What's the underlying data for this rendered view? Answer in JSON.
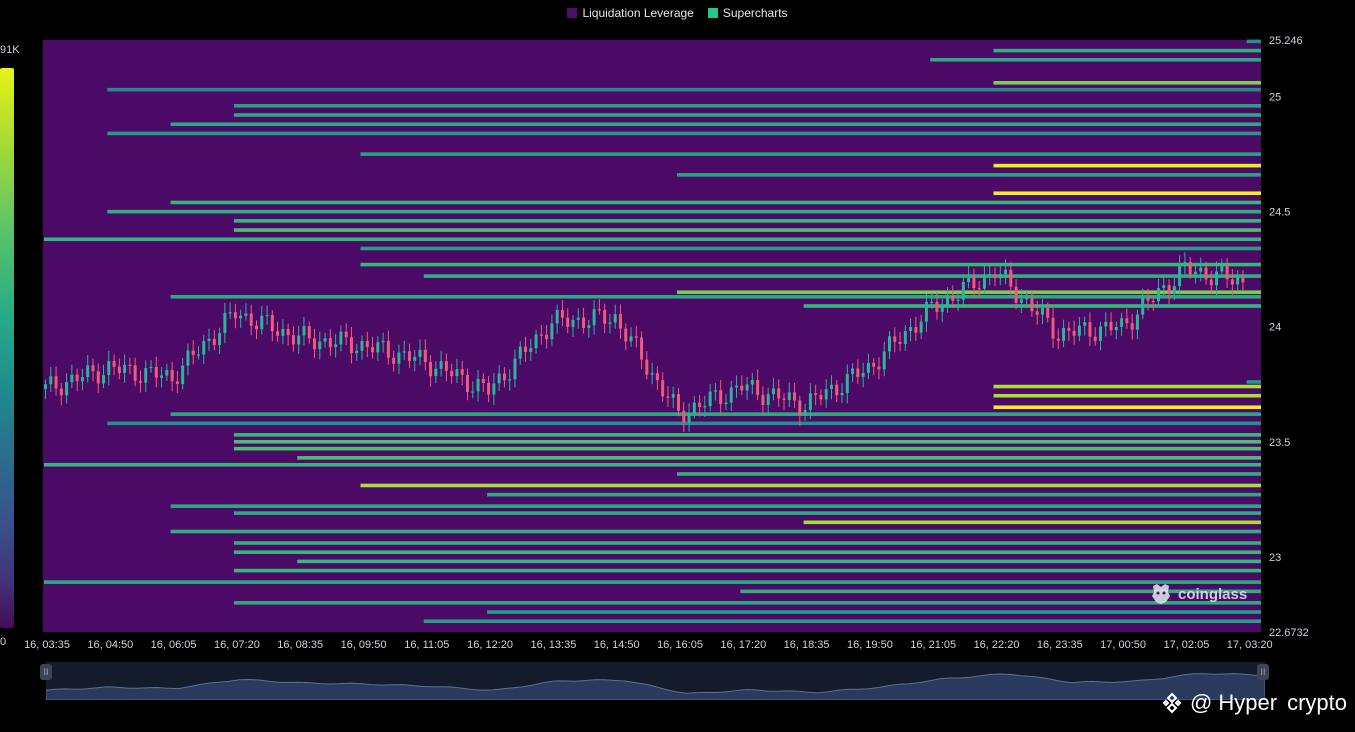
{
  "legend": {
    "items": [
      {
        "label": "Liquidation Leverage",
        "color": "#4a1066"
      },
      {
        "label": "Supercharts",
        "color": "#22c98a"
      }
    ]
  },
  "colorbar": {
    "max_label": "91K",
    "min_label": "0"
  },
  "chart_data": {
    "type": "heatmap",
    "y_axis": {
      "ylim": [
        22.6732,
        25.246
      ],
      "ticks": [
        "25.246",
        "25",
        "24.5",
        "24",
        "23.5",
        "23",
        "22.6732"
      ]
    },
    "x_axis": {
      "ticks": [
        "16, 03:35",
        "16, 04:50",
        "16, 06:05",
        "16, 07:20",
        "16, 08:35",
        "16, 09:50",
        "16, 11:05",
        "16, 12:20",
        "16, 13:35",
        "16, 14:50",
        "16, 16:05",
        "16, 17:20",
        "16, 18:35",
        "16, 19:50",
        "16, 21:05",
        "16, 22:20",
        "16, 23:35",
        "17, 00:50",
        "17, 02:05",
        "17, 03:20"
      ]
    },
    "price_series": {
      "name": "price",
      "x": [
        "16, 03:35",
        "16, 04:50",
        "16, 06:05",
        "16, 07:20",
        "16, 08:35",
        "16, 09:50",
        "16, 11:05",
        "16, 12:20",
        "16, 13:35",
        "16, 14:50",
        "16, 16:05",
        "16, 17:20",
        "16, 18:35",
        "16, 19:50",
        "16, 21:05",
        "16, 22:20",
        "16, 23:35",
        "17, 00:50",
        "17, 02:05",
        "17, 03:20"
      ],
      "close": [
        23.73,
        23.82,
        23.78,
        24.06,
        23.95,
        23.92,
        23.85,
        23.72,
        24.02,
        24.04,
        23.62,
        23.74,
        23.66,
        23.82,
        24.08,
        24.24,
        23.97,
        24.0,
        24.25,
        24.19
      ]
    },
    "liquidation_levels": [
      {
        "price": 25.24,
        "start": "17, 03:20",
        "intensity": 0.35
      },
      {
        "price": 25.2,
        "start": "16, 22:20",
        "intensity": 0.55
      },
      {
        "price": 25.16,
        "start": "16, 21:05",
        "intensity": 0.5
      },
      {
        "price": 25.06,
        "start": "16, 22:20",
        "intensity": 0.75
      },
      {
        "price": 25.03,
        "start": "16, 04:50",
        "intensity": 0.3
      },
      {
        "price": 24.96,
        "start": "16, 07:20",
        "intensity": 0.45
      },
      {
        "price": 24.92,
        "start": "16, 07:20",
        "intensity": 0.5
      },
      {
        "price": 24.88,
        "start": "16, 06:05",
        "intensity": 0.5
      },
      {
        "price": 24.84,
        "start": "16, 04:50",
        "intensity": 0.4
      },
      {
        "price": 24.75,
        "start": "16, 09:50",
        "intensity": 0.45
      },
      {
        "price": 24.7,
        "start": "16, 22:20",
        "intensity": 1.0
      },
      {
        "price": 24.66,
        "start": "16, 16:05",
        "intensity": 0.45
      },
      {
        "price": 24.58,
        "start": "16, 22:20",
        "intensity": 1.0
      },
      {
        "price": 24.54,
        "start": "16, 06:05",
        "intensity": 0.6
      },
      {
        "price": 24.5,
        "start": "16, 04:50",
        "intensity": 0.55
      },
      {
        "price": 24.46,
        "start": "16, 07:20",
        "intensity": 0.6
      },
      {
        "price": 24.42,
        "start": "16, 07:20",
        "intensity": 0.65
      },
      {
        "price": 24.38,
        "start": "16, 03:35",
        "intensity": 0.6
      },
      {
        "price": 24.34,
        "start": "16, 09:50",
        "intensity": 0.45
      },
      {
        "price": 24.27,
        "start": "16, 09:50",
        "intensity": 0.6
      },
      {
        "price": 24.22,
        "start": "16, 11:05",
        "intensity": 0.55
      },
      {
        "price": 24.15,
        "start": "16, 16:05",
        "intensity": 0.75
      },
      {
        "price": 24.13,
        "start": "16, 06:05",
        "intensity": 0.5
      },
      {
        "price": 24.09,
        "start": "16, 18:35",
        "intensity": 0.6
      },
      {
        "price": 23.76,
        "start": "17, 03:20",
        "intensity": 0.4
      },
      {
        "price": 23.74,
        "start": "16, 22:20",
        "intensity": 0.85
      },
      {
        "price": 23.7,
        "start": "16, 22:20",
        "intensity": 0.85
      },
      {
        "price": 23.65,
        "start": "16, 22:20",
        "intensity": 1.0
      },
      {
        "price": 23.62,
        "start": "16, 06:05",
        "intensity": 0.5
      },
      {
        "price": 23.58,
        "start": "16, 04:50",
        "intensity": 0.35
      },
      {
        "price": 23.53,
        "start": "16, 07:20",
        "intensity": 0.6
      },
      {
        "price": 23.5,
        "start": "16, 07:20",
        "intensity": 0.65
      },
      {
        "price": 23.47,
        "start": "16, 07:20",
        "intensity": 0.65
      },
      {
        "price": 23.43,
        "start": "16, 08:35",
        "intensity": 0.65
      },
      {
        "price": 23.4,
        "start": "16, 03:35",
        "intensity": 0.6
      },
      {
        "price": 23.36,
        "start": "16, 16:05",
        "intensity": 0.55
      },
      {
        "price": 23.31,
        "start": "16, 09:50",
        "intensity": 0.85
      },
      {
        "price": 23.27,
        "start": "16, 12:20",
        "intensity": 0.5
      },
      {
        "price": 23.22,
        "start": "16, 06:05",
        "intensity": 0.5
      },
      {
        "price": 23.19,
        "start": "16, 07:20",
        "intensity": 0.5
      },
      {
        "price": 23.15,
        "start": "16, 18:35",
        "intensity": 0.85
      },
      {
        "price": 23.11,
        "start": "16, 06:05",
        "intensity": 0.55
      },
      {
        "price": 23.06,
        "start": "16, 07:20",
        "intensity": 0.55
      },
      {
        "price": 23.02,
        "start": "16, 07:20",
        "intensity": 0.6
      },
      {
        "price": 22.98,
        "start": "16, 08:35",
        "intensity": 0.6
      },
      {
        "price": 22.94,
        "start": "16, 07:20",
        "intensity": 0.6
      },
      {
        "price": 22.89,
        "start": "16, 03:35",
        "intensity": 0.5
      },
      {
        "price": 22.85,
        "start": "16, 17:20",
        "intensity": 0.55
      },
      {
        "price": 22.8,
        "start": "16, 07:20",
        "intensity": 0.5
      },
      {
        "price": 22.76,
        "start": "16, 12:20",
        "intensity": 0.45
      },
      {
        "price": 22.72,
        "start": "16, 11:05",
        "intensity": 0.45
      }
    ]
  },
  "watermark": {
    "text": "coinglass"
  },
  "navigator": {
    "left_handle": "II",
    "right_handle": "II"
  },
  "footer": {
    "at": "@",
    "text1": "Hyper",
    "text2": "crypto"
  }
}
